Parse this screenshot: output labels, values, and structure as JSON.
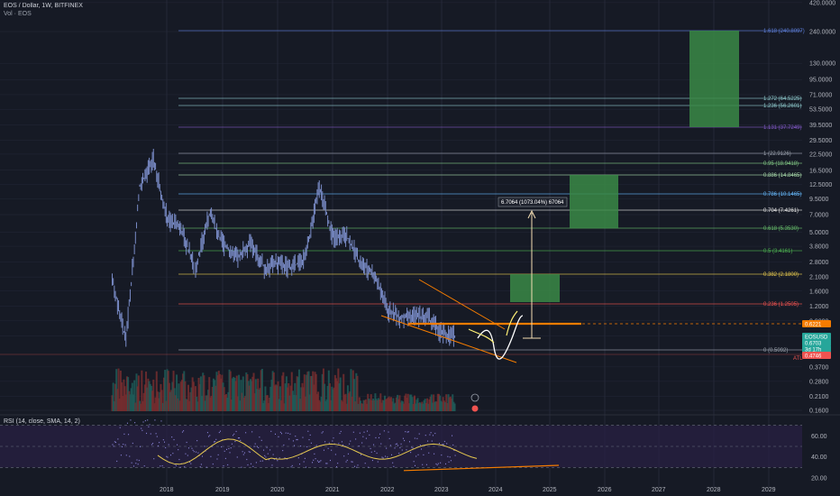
{
  "header": {
    "symbol_line": "EOS / Dollar, 1W, BITFINEX",
    "volume_line": "Vol · EOS",
    "rsi_line": "RSI (14, close, SMA, 14, 2)"
  },
  "price_axis": {
    "ticks": [
      "420.0000",
      "240.0000",
      "130.0000",
      "95.0000",
      "71.0000",
      "53.5000",
      "39.5000",
      "29.5000",
      "22.5000",
      "16.5000",
      "12.5000",
      "9.5000",
      "7.0000",
      "5.0000",
      "3.8000",
      "2.8000",
      "2.1000",
      "1.6000",
      "1.2000",
      "0.9000",
      "0.6700",
      "0.3700",
      "0.2800",
      "0.2100",
      "0.1600"
    ],
    "badges": [
      {
        "text": "0.6221",
        "color": "#f57c00",
        "text_color": "#ffffff"
      },
      {
        "text": "EOSUSD",
        "color": "#26a69a",
        "text_color": "#ffffff"
      },
      {
        "text": "0.6703",
        "color": "#26a69a",
        "text_color": "#ffffff"
      },
      {
        "text": "3d 17h",
        "color": "#26a69a",
        "text_color": "#ffffff"
      },
      {
        "text": "0.4746",
        "color": "#ef5350",
        "text_color": "#ffffff"
      }
    ],
    "atl_label": "ATL"
  },
  "rsi_axis": {
    "ticks": [
      "60.00",
      "40.00",
      "20.00"
    ]
  },
  "time_axis": {
    "years": [
      "2018",
      "2019",
      "2020",
      "2021",
      "2022",
      "2023",
      "2024",
      "2025",
      "2026",
      "2027",
      "2028",
      "2029"
    ]
  },
  "fib_levels": [
    {
      "label": "1.618 (240.8097)",
      "color": "#5b7cd6"
    },
    {
      "label": "1.272 (64.5225)",
      "color": "#8bc5c8"
    },
    {
      "label": "1.236 (56.2601)",
      "color": "#8bc5c8"
    },
    {
      "label": "1.131 (37.7249)",
      "color": "#7e57c2"
    },
    {
      "label": "1 (22.9126)",
      "color": "#9aa0ab"
    },
    {
      "label": "0.95 (18.9418)",
      "color": "#81c784"
    },
    {
      "label": "0.886 (14.8465)",
      "color": "#a5d6a7"
    },
    {
      "label": "0.786 (10.1465)",
      "color": "#64b5f6"
    },
    {
      "label": "0.704 (7.4261)",
      "color": "#e0e0e0"
    },
    {
      "label": "0.618 (5.3530)",
      "color": "#66bb6a"
    },
    {
      "label": "0.5 (3.4161)",
      "color": "#4caf50"
    },
    {
      "label": "0.382 (2.1800)",
      "color": "#e6c84f"
    },
    {
      "label": "0.236 (1.2505)",
      "color": "#ef5350"
    },
    {
      "label": "0 (0.5092)",
      "color": "#9aa0ab"
    }
  ],
  "annotation": {
    "text": "6.7064 (1073.04%) 67064"
  },
  "colors": {
    "background": "#161a25",
    "grid": "#242838",
    "candle": "#7a8cc8",
    "volume_up": "#1f5f5b",
    "volume_down": "#7b2e30",
    "target_box": "#3a8a47",
    "rsi_line": "#8a84d8",
    "rsi_ma": "#e6c84f",
    "rsi_band": "#2a2145",
    "trendline": "#f57c00",
    "projection": "#ffffff",
    "arrow": "#f5deb3"
  },
  "chart_data": {
    "type": "line",
    "xlabel": "",
    "ylabel": "",
    "ylim": [
      0.16,
      420
    ],
    "log_scale": true,
    "x": [
      "2017-07",
      "2017-10",
      "2018-01",
      "2018-04",
      "2018-07",
      "2018-10",
      "2019-01",
      "2019-04",
      "2019-07",
      "2019-10",
      "2020-01",
      "2020-04",
      "2020-07",
      "2020-10",
      "2021-01",
      "2021-04",
      "2021-07",
      "2021-10",
      "2022-01",
      "2022-04",
      "2022-07",
      "2022-10",
      "2023-01",
      "2023-04",
      "2023-07",
      "2023-10"
    ],
    "series": [
      {
        "values": [
          2.0,
          0.6,
          12.0,
          20.0,
          6.5,
          5.3,
          2.5,
          7.0,
          4.0,
          3.0,
          4.0,
          2.5,
          2.7,
          2.5,
          3.0,
          12.0,
          4.5,
          4.6,
          2.7,
          2.2,
          1.1,
          0.95,
          1.0,
          0.95,
          0.7,
          0.67
        ]
      }
    ]
  }
}
